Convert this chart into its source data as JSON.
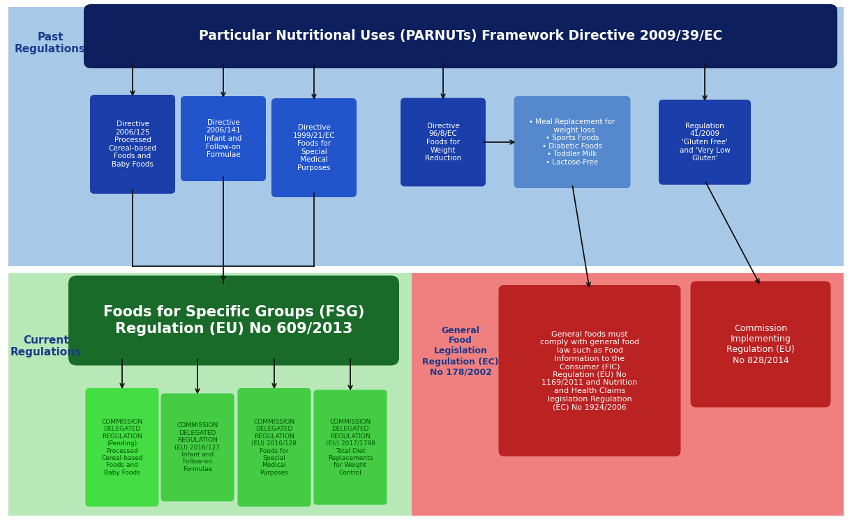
{
  "fig_width": 12.21,
  "fig_height": 7.52,
  "dpi": 100,
  "bg_color": "#ffffff",
  "past_bg": "#a8c8e8",
  "current_left_bg": "#b8e8b8",
  "current_right_bg": "#f08080",
  "past_label": "Past\nRegulations",
  "current_label": "Current\nRegulations",
  "label_color": "#1a3a8a",
  "main_past_box": {
    "text": "Particular Nutritional Uses (PARNUTs) Framework Directive 2009/39/EC",
    "color": "#0d1f5c",
    "text_color": "#ffffff",
    "fontsize": 13.5
  },
  "past_child_boxes": [
    {
      "text": "Directive\n2006/125\nProcessed\nCereal-based\nFoods and\nBaby Foods",
      "color": "#1a3faa",
      "text_color": "#ffffff",
      "fontsize": 7.5
    },
    {
      "text": "Directive\n2006/141\nInfant and\nFollow-on\nFormulae",
      "color": "#2255cc",
      "text_color": "#ffffff",
      "fontsize": 7.5
    },
    {
      "text": "Directive\n1999/21/EC\nFoods for\nSpecial\nMedical\nPurposes",
      "color": "#2255cc",
      "text_color": "#ffffff",
      "fontsize": 7.5
    },
    {
      "text": "Directive\n96/8/EC\nFoods for\nWeight\nReduction",
      "color": "#1a3faa",
      "text_color": "#ffffff",
      "fontsize": 7.5
    },
    {
      "text": "• Meal Replacement for\n  weight loss\n• Sports Foods\n• Diabetic Foods\n• Toddler Milk\n• Lactose-Free",
      "color": "#5588cc",
      "text_color": "#ffffff",
      "fontsize": 7.5
    },
    {
      "text": "Regulation\n41/2009\n'Gluten Free'\nand 'Very Low\nGluten'",
      "color": "#1a3faa",
      "text_color": "#ffffff",
      "fontsize": 7.5
    }
  ],
  "main_current_box": {
    "text": "Foods for Specific Groups (FSG)\nRegulation (EU) No 609/2013",
    "color": "#1a6b2a",
    "text_color": "#ffffff",
    "fontsize": 15
  },
  "current_child_boxes": [
    {
      "text": "COMMISSION\nDELEGATED\nREGULATION\n(Pending)\nProcessed\nCereal-based\nFoods and\nBaby Foods",
      "color": "#44dd44",
      "text_color": "#005500",
      "fontsize": 6.5
    },
    {
      "text": "COMMISSION\nDELEGATED\nREGULATION\n(EU) 2016/127\nInfant and\nFollow-on\nFormulae",
      "color": "#44cc44",
      "text_color": "#005500",
      "fontsize": 6.5
    },
    {
      "text": "COMMISSION\nDELEGATED\nREGULATION\n(EU) 2016/128\nFoods for\nSpecial\nMedical\nPurposes",
      "color": "#44cc44",
      "text_color": "#005500",
      "fontsize": 6.5
    },
    {
      "text": "COMMISSION\nDELEGATED\nREGULATION\n(EU) 2017/1798\nTotal Diet\nReplacements\nfor Weight\nControl",
      "color": "#44cc44",
      "text_color": "#005500",
      "fontsize": 6.5
    }
  ],
  "general_food_box": {
    "text": "General\nFood\nLegislation\nRegulation (EC)\nNo 178/2002",
    "color": "#f08080",
    "text_color": "#1a3a8a",
    "fontsize": 9
  },
  "general_food_desc_box": {
    "text": "General foods must\ncomply with general food\nlaw such as Food\nInformation to the\nConsumer (FIC)\nRegulation (EU) No\n1169/2011 and Nutrition\nand Health Claims\nlegislation Regulation\n(EC) No 1924/2006",
    "color": "#bb2222",
    "text_color": "#ffffff",
    "fontsize": 8
  },
  "commission_impl_box": {
    "text": "Commission\nImplementing\nRegulation (EU)\nNo 828/2014",
    "color": "#bb2222",
    "text_color": "#ffffff",
    "fontsize": 9
  }
}
